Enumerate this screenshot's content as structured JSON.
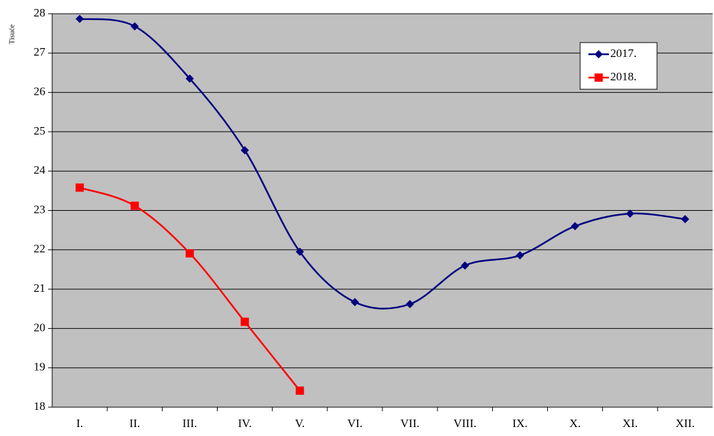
{
  "chart_data": {
    "type": "line",
    "y_label": "Tisuće",
    "categories": [
      "I.",
      "II.",
      "III.",
      "IV.",
      "V.",
      "VI.",
      "VII.",
      "VIII.",
      "IX.",
      "X.",
      "XI.",
      "XII."
    ],
    "series": [
      {
        "name": "2017.",
        "color": "#000080",
        "marker": "diamond",
        "values": [
          27.87,
          27.68,
          26.35,
          24.53,
          21.95,
          20.67,
          20.62,
          21.6,
          21.86,
          22.6,
          22.92,
          22.78
        ]
      },
      {
        "name": "2018.",
        "color": "#ff0000",
        "marker": "square",
        "values": [
          23.58,
          23.12,
          21.91,
          20.17,
          18.42,
          null,
          null,
          null,
          null,
          null,
          null,
          null
        ]
      }
    ],
    "ylim": [
      18,
      28
    ],
    "yticks": [
      18,
      19,
      20,
      21,
      22,
      23,
      24,
      25,
      26,
      27,
      28
    ],
    "grid": true,
    "smooth": true,
    "plot_background": "#c0c0c0",
    "legend": "top-right"
  }
}
